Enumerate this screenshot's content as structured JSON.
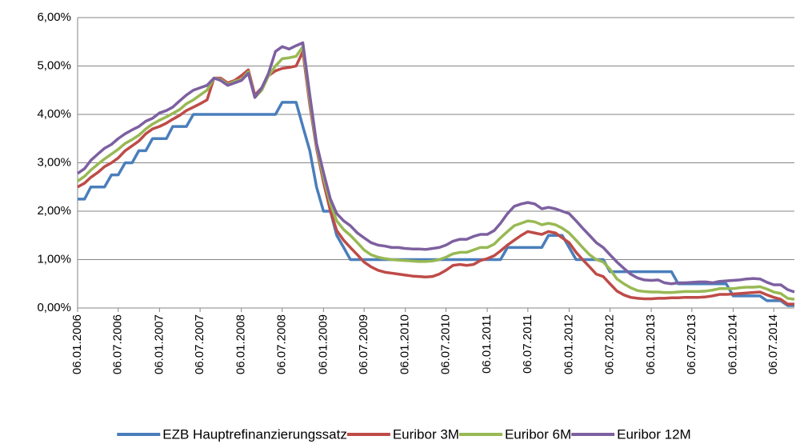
{
  "chart_data": {
    "type": "line",
    "x": [
      "06.01.2006",
      "06.02.2006",
      "06.03.2006",
      "06.04.2006",
      "06.05.2006",
      "06.06.2006",
      "06.07.2006",
      "06.08.2006",
      "06.09.2006",
      "06.10.2006",
      "06.11.2006",
      "06.12.2006",
      "06.01.2007",
      "06.02.2007",
      "06.03.2007",
      "06.04.2007",
      "06.05.2007",
      "06.06.2007",
      "06.07.2007",
      "06.08.2007",
      "06.09.2007",
      "06.10.2007",
      "06.11.2007",
      "06.12.2007",
      "06.01.2008",
      "06.02.2008",
      "06.03.2008",
      "06.04.2008",
      "06.05.2008",
      "06.06.2008",
      "06.07.2008",
      "06.08.2008",
      "06.09.2008",
      "06.10.2008",
      "06.11.2008",
      "06.12.2008",
      "06.01.2009",
      "06.02.2009",
      "06.03.2009",
      "06.04.2009",
      "06.05.2009",
      "06.06.2009",
      "06.07.2009",
      "06.08.2009",
      "06.09.2009",
      "06.10.2009",
      "06.11.2009",
      "06.12.2009",
      "06.01.2010",
      "06.02.2010",
      "06.03.2010",
      "06.04.2010",
      "06.05.2010",
      "06.06.2010",
      "06.07.2010",
      "06.08.2010",
      "06.09.2010",
      "06.10.2010",
      "06.11.2010",
      "06.12.2010",
      "06.01.2011",
      "06.02.2011",
      "06.03.2011",
      "06.04.2011",
      "06.05.2011",
      "06.06.2011",
      "06.07.2011",
      "06.08.2011",
      "06.09.2011",
      "06.10.2011",
      "06.11.2011",
      "06.12.2011",
      "06.01.2012",
      "06.02.2012",
      "06.03.2012",
      "06.04.2012",
      "06.05.2012",
      "06.06.2012",
      "06.07.2012",
      "06.08.2012",
      "06.09.2012",
      "06.10.2012",
      "06.11.2012",
      "06.12.2012",
      "06.01.2013",
      "06.02.2013",
      "06.03.2013",
      "06.04.2013",
      "06.05.2013",
      "06.06.2013",
      "06.07.2013",
      "06.08.2013",
      "06.09.2013",
      "06.10.2013",
      "06.11.2013",
      "06.12.2013",
      "06.01.2014",
      "06.02.2014",
      "06.03.2014",
      "06.04.2014",
      "06.05.2014",
      "06.06.2014",
      "06.07.2014",
      "06.08.2014",
      "06.09.2014",
      "06.10.2014"
    ],
    "series": [
      {
        "name": "EZB Hauptrefinanzierungssatz",
        "color": "#4a7ebb",
        "values": [
          2.25,
          2.25,
          2.5,
          2.5,
          2.5,
          2.75,
          2.75,
          3.0,
          3.0,
          3.25,
          3.25,
          3.5,
          3.5,
          3.5,
          3.75,
          3.75,
          3.75,
          4.0,
          4.0,
          4.0,
          4.0,
          4.0,
          4.0,
          4.0,
          4.0,
          4.0,
          4.0,
          4.0,
          4.0,
          4.0,
          4.25,
          4.25,
          4.25,
          3.75,
          3.25,
          2.5,
          2.0,
          2.0,
          1.5,
          1.25,
          1.0,
          1.0,
          1.0,
          1.0,
          1.0,
          1.0,
          1.0,
          1.0,
          1.0,
          1.0,
          1.0,
          1.0,
          1.0,
          1.0,
          1.0,
          1.0,
          1.0,
          1.0,
          1.0,
          1.0,
          1.0,
          1.0,
          1.0,
          1.25,
          1.25,
          1.25,
          1.25,
          1.25,
          1.25,
          1.5,
          1.5,
          1.5,
          1.25,
          1.0,
          1.0,
          1.0,
          1.0,
          1.0,
          0.75,
          0.75,
          0.75,
          0.75,
          0.75,
          0.75,
          0.75,
          0.75,
          0.75,
          0.75,
          0.5,
          0.5,
          0.5,
          0.5,
          0.5,
          0.5,
          0.5,
          0.5,
          0.25,
          0.25,
          0.25,
          0.25,
          0.25,
          0.15,
          0.15,
          0.15,
          0.05,
          0.05
        ]
      },
      {
        "name": "Euribor 3M",
        "color": "#be4b48",
        "values": [
          2.5,
          2.58,
          2.7,
          2.8,
          2.92,
          3.0,
          3.1,
          3.25,
          3.35,
          3.45,
          3.6,
          3.7,
          3.75,
          3.82,
          3.9,
          3.98,
          4.08,
          4.15,
          4.22,
          4.3,
          4.75,
          4.75,
          4.65,
          4.7,
          4.8,
          4.92,
          4.4,
          4.55,
          4.8,
          4.9,
          4.95,
          4.97,
          5.0,
          5.3,
          4.2,
          3.3,
          2.6,
          2.0,
          1.6,
          1.4,
          1.25,
          1.1,
          0.95,
          0.85,
          0.78,
          0.74,
          0.72,
          0.7,
          0.68,
          0.66,
          0.65,
          0.64,
          0.65,
          0.7,
          0.78,
          0.88,
          0.9,
          0.88,
          0.9,
          0.98,
          1.02,
          1.08,
          1.18,
          1.3,
          1.4,
          1.5,
          1.58,
          1.55,
          1.52,
          1.58,
          1.55,
          1.45,
          1.35,
          1.15,
          1.0,
          0.85,
          0.7,
          0.65,
          0.5,
          0.35,
          0.27,
          0.22,
          0.2,
          0.19,
          0.19,
          0.2,
          0.2,
          0.21,
          0.21,
          0.22,
          0.22,
          0.22,
          0.23,
          0.25,
          0.28,
          0.28,
          0.29,
          0.3,
          0.31,
          0.32,
          0.33,
          0.27,
          0.22,
          0.18,
          0.08,
          0.08
        ]
      },
      {
        "name": "Euribor 6M",
        "color": "#98b954",
        "values": [
          2.62,
          2.72,
          2.85,
          2.97,
          3.08,
          3.18,
          3.28,
          3.4,
          3.48,
          3.57,
          3.7,
          3.8,
          3.88,
          3.95,
          4.02,
          4.1,
          4.22,
          4.3,
          4.4,
          4.5,
          4.75,
          4.72,
          4.62,
          4.68,
          4.72,
          4.88,
          4.35,
          4.5,
          4.8,
          5.0,
          5.15,
          5.17,
          5.2,
          5.4,
          4.3,
          3.35,
          2.7,
          2.15,
          1.8,
          1.62,
          1.5,
          1.35,
          1.2,
          1.1,
          1.05,
          1.02,
          1.0,
          0.99,
          0.98,
          0.97,
          0.96,
          0.96,
          0.97,
          1.0,
          1.05,
          1.12,
          1.15,
          1.15,
          1.2,
          1.25,
          1.25,
          1.32,
          1.45,
          1.58,
          1.7,
          1.75,
          1.8,
          1.78,
          1.72,
          1.75,
          1.72,
          1.65,
          1.55,
          1.4,
          1.25,
          1.1,
          1.0,
          0.95,
          0.8,
          0.6,
          0.5,
          0.42,
          0.36,
          0.34,
          0.33,
          0.33,
          0.32,
          0.32,
          0.33,
          0.34,
          0.34,
          0.34,
          0.35,
          0.37,
          0.4,
          0.4,
          0.4,
          0.42,
          0.43,
          0.43,
          0.44,
          0.39,
          0.33,
          0.3,
          0.2,
          0.18
        ]
      },
      {
        "name": "Euribor 12M",
        "color": "#7d60a0",
        "values": [
          2.78,
          2.88,
          3.05,
          3.18,
          3.3,
          3.38,
          3.5,
          3.6,
          3.68,
          3.75,
          3.86,
          3.92,
          4.03,
          4.08,
          4.15,
          4.28,
          4.4,
          4.5,
          4.55,
          4.6,
          4.75,
          4.7,
          4.6,
          4.65,
          4.7,
          4.85,
          4.35,
          4.55,
          4.85,
          5.3,
          5.4,
          5.35,
          5.42,
          5.48,
          4.4,
          3.4,
          2.8,
          2.25,
          1.95,
          1.8,
          1.7,
          1.55,
          1.45,
          1.35,
          1.3,
          1.28,
          1.25,
          1.25,
          1.23,
          1.22,
          1.22,
          1.21,
          1.23,
          1.25,
          1.3,
          1.38,
          1.42,
          1.42,
          1.48,
          1.52,
          1.52,
          1.6,
          1.75,
          1.95,
          2.1,
          2.15,
          2.18,
          2.15,
          2.05,
          2.08,
          2.05,
          2.0,
          1.95,
          1.8,
          1.65,
          1.5,
          1.35,
          1.25,
          1.1,
          0.95,
          0.82,
          0.7,
          0.62,
          0.58,
          0.57,
          0.58,
          0.52,
          0.5,
          0.52,
          0.52,
          0.53,
          0.54,
          0.54,
          0.52,
          0.55,
          0.56,
          0.57,
          0.58,
          0.6,
          0.61,
          0.6,
          0.53,
          0.48,
          0.48,
          0.38,
          0.33
        ]
      }
    ],
    "xlim": [
      "06.01.2006",
      "06.10.2014"
    ],
    "xticks": [
      "06.01.2006",
      "06.07.2006",
      "06.01.2007",
      "06.07.2007",
      "06.01.2008",
      "06.07.2008",
      "06.01.2009",
      "06.07.2009",
      "06.01.2010",
      "06.07.2010",
      "06.01.2011",
      "06.07.2011",
      "06.01.2012",
      "06.07.2012",
      "06.01.2013",
      "06.07.2013",
      "06.01.2014",
      "06.07.2014"
    ],
    "ylim": [
      0,
      6
    ],
    "yticks": [
      {
        "value": 0,
        "label": "0,00%"
      },
      {
        "value": 1,
        "label": "1,00%"
      },
      {
        "value": 2,
        "label": "2,00%"
      },
      {
        "value": 3,
        "label": "3,00%"
      },
      {
        "value": 4,
        "label": "4,00%"
      },
      {
        "value": 5,
        "label": "5,00%"
      },
      {
        "value": 6,
        "label": "6,00%"
      }
    ],
    "grid": true,
    "legend": "bottom"
  }
}
